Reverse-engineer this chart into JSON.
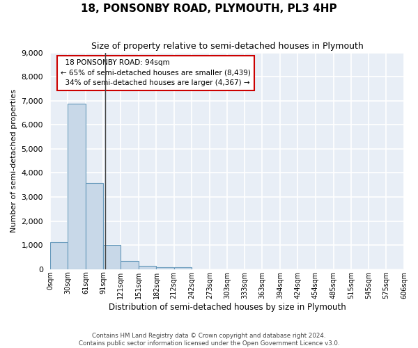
{
  "title": "18, PONSONBY ROAD, PLYMOUTH, PL3 4HP",
  "subtitle": "Size of property relative to semi-detached houses in Plymouth",
  "xlabel": "Distribution of semi-detached houses by size in Plymouth",
  "ylabel": "Number of semi-detached properties",
  "bar_color": "#c8d8e8",
  "bar_edge_color": "#6699bb",
  "background_color": "#e8eef6",
  "grid_color": "#ffffff",
  "annotation_box_color": "#cc0000",
  "property_line_color": "#444444",
  "bin_edges": [
    0,
    30,
    61,
    91,
    121,
    151,
    182,
    212,
    242,
    273,
    303,
    333,
    363,
    394,
    424,
    454,
    485,
    515,
    545,
    575,
    606
  ],
  "bin_labels": [
    "0sqm",
    "30sqm",
    "61sqm",
    "91sqm",
    "121sqm",
    "151sqm",
    "182sqm",
    "212sqm",
    "242sqm",
    "273sqm",
    "303sqm",
    "333sqm",
    "363sqm",
    "394sqm",
    "424sqm",
    "454sqm",
    "485sqm",
    "515sqm",
    "545sqm",
    "575sqm",
    "606sqm"
  ],
  "bar_heights": [
    1130,
    6880,
    3570,
    1000,
    330,
    145,
    90,
    70,
    0,
    0,
    0,
    0,
    0,
    0,
    0,
    0,
    0,
    0,
    0,
    0
  ],
  "ylim": [
    0,
    9000
  ],
  "yticks": [
    0,
    1000,
    2000,
    3000,
    4000,
    5000,
    6000,
    7000,
    8000,
    9000
  ],
  "property_size": 94,
  "property_label": "18 PONSONBY ROAD: 94sqm",
  "pct_smaller": 65,
  "n_smaller": "8,439",
  "pct_larger": 34,
  "n_larger": "4,367",
  "footer_line1": "Contains HM Land Registry data © Crown copyright and database right 2024.",
  "footer_line2": "Contains public sector information licensed under the Open Government Licence v3.0."
}
